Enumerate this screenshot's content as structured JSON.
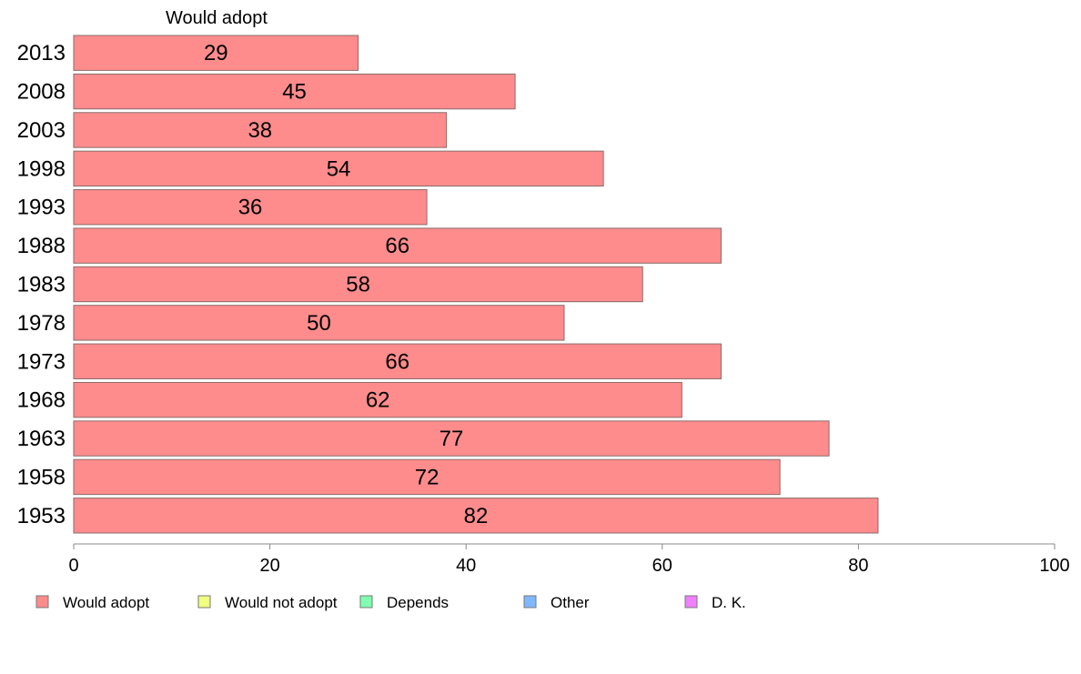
{
  "chart_data": {
    "type": "bar",
    "orientation": "horizontal",
    "title": "Would adopt",
    "categories": [
      "2013",
      "2008",
      "2003",
      "1998",
      "1993",
      "1988",
      "1983",
      "1978",
      "1973",
      "1968",
      "1963",
      "1958",
      "1953"
    ],
    "series": [
      {
        "name": "Would adopt",
        "color": "#ff8c8c",
        "values": [
          29,
          45,
          38,
          54,
          36,
          66,
          58,
          50,
          66,
          62,
          77,
          72,
          82
        ]
      }
    ],
    "data_labels": [
      "29",
      "45",
      "38",
      "54",
      "36",
      "66",
      "58",
      "50",
      "66",
      "62",
      "77",
      "72",
      "82"
    ],
    "xlim": [
      0,
      100
    ],
    "x_ticks": [
      "0",
      "20",
      "40",
      "60",
      "80",
      "100"
    ],
    "xlabel": "",
    "ylabel": "",
    "grid": false,
    "legend_position": "bottom",
    "legend": [
      {
        "label": "Would adopt",
        "color": "#ff8c8c"
      },
      {
        "label": "Would not adopt",
        "color": "#f0ff80"
      },
      {
        "label": "Depends",
        "color": "#80ffb0"
      },
      {
        "label": "Other",
        "color": "#80b8ff"
      },
      {
        "label": "D. K.",
        "color": "#f080ff"
      }
    ]
  }
}
